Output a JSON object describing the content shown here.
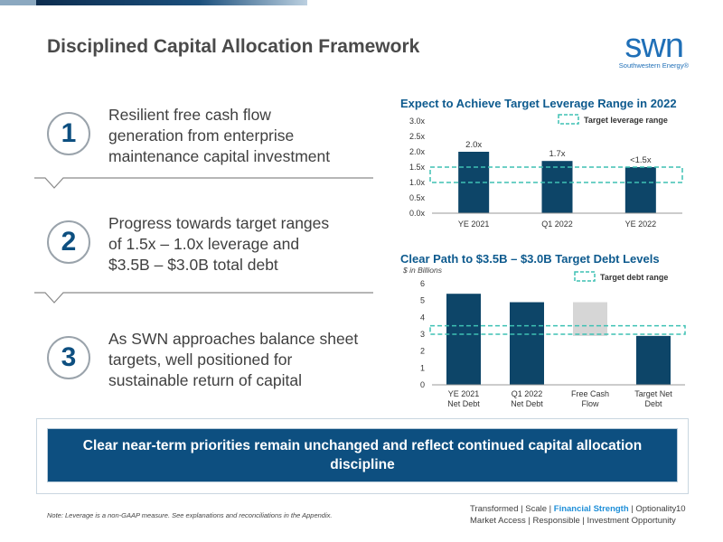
{
  "slide": {
    "title": "Disciplined Capital Allocation Framework",
    "logo": {
      "word": "swn",
      "subtitle": "Southwestern Energy®"
    }
  },
  "points": [
    {
      "number": "1",
      "lines": [
        "Resilient free cash flow",
        "generation from enterprise",
        "maintenance capital investment"
      ]
    },
    {
      "number": "2",
      "lines": [
        "Progress towards target ranges",
        "of 1.5x – 1.0x leverage and",
        "$3.5B – $3.0B total debt"
      ]
    },
    {
      "number": "3",
      "lines": [
        "As SWN approaches balance sheet",
        "targets, well positioned for",
        "sustainable return of capital"
      ]
    }
  ],
  "chart_data": [
    {
      "type": "bar",
      "title": "Expect to Achieve Target Leverage Range in 2022",
      "categories": [
        "YE 2021",
        "Q1 2022",
        "YE 2022"
      ],
      "values": [
        2.0,
        1.7,
        1.5
      ],
      "data_labels": [
        "2.0x",
        "1.7x",
        "<1.5x"
      ],
      "yticks": [
        "0.0x",
        "0.5x",
        "1.0x",
        "1.5x",
        "2.0x",
        "2.5x",
        "3.0x"
      ],
      "ylim": [
        0,
        3.0
      ],
      "target_range": [
        1.0,
        1.5
      ],
      "legend": "Target leverage range",
      "legend_position": "top-right",
      "colors": {
        "bar": "#0d4568",
        "target": "#3ec1b4"
      }
    },
    {
      "type": "bar",
      "title": "Clear Path to $3.5B – $3.0B Target Debt Levels",
      "subtitle": "$ in Billions",
      "categories": [
        [
          "YE 2021",
          "Net Debt"
        ],
        [
          "Q1 2022",
          "Net Debt"
        ],
        [
          "Free Cash",
          "Flow"
        ],
        [
          "Target Net",
          "Debt"
        ]
      ],
      "bars": [
        {
          "base": 0,
          "top": 5.4,
          "color": "#0d4568"
        },
        {
          "base": 0,
          "top": 4.9,
          "color": "#0d4568"
        },
        {
          "base": 2.9,
          "top": 4.9,
          "color": "#d6d6d6"
        },
        {
          "base": 0,
          "top": 2.9,
          "color": "#0d4568"
        }
      ],
      "yticks": [
        "0",
        "1",
        "2",
        "3",
        "4",
        "5",
        "6"
      ],
      "ylim": [
        0,
        6
      ],
      "target_range": [
        3.0,
        3.5
      ],
      "legend": "Target debt range",
      "legend_position": "top-right",
      "colors": {
        "target": "#3ec1b4"
      }
    }
  ],
  "banner": "Clear near-term priorities remain unchanged and reflect continued capital allocation discipline",
  "footer": {
    "note": "Note: Leverage is a non-GAAP measure. See explanations and reconciliations in the Appendix.",
    "tag_before": "Transformed | Scale | ",
    "tag_highlight": "Financial Strength",
    "tag_after": " | Optionality",
    "tag_line2": "Market Access | Responsible | Investment Opportunity",
    "page": "10"
  }
}
